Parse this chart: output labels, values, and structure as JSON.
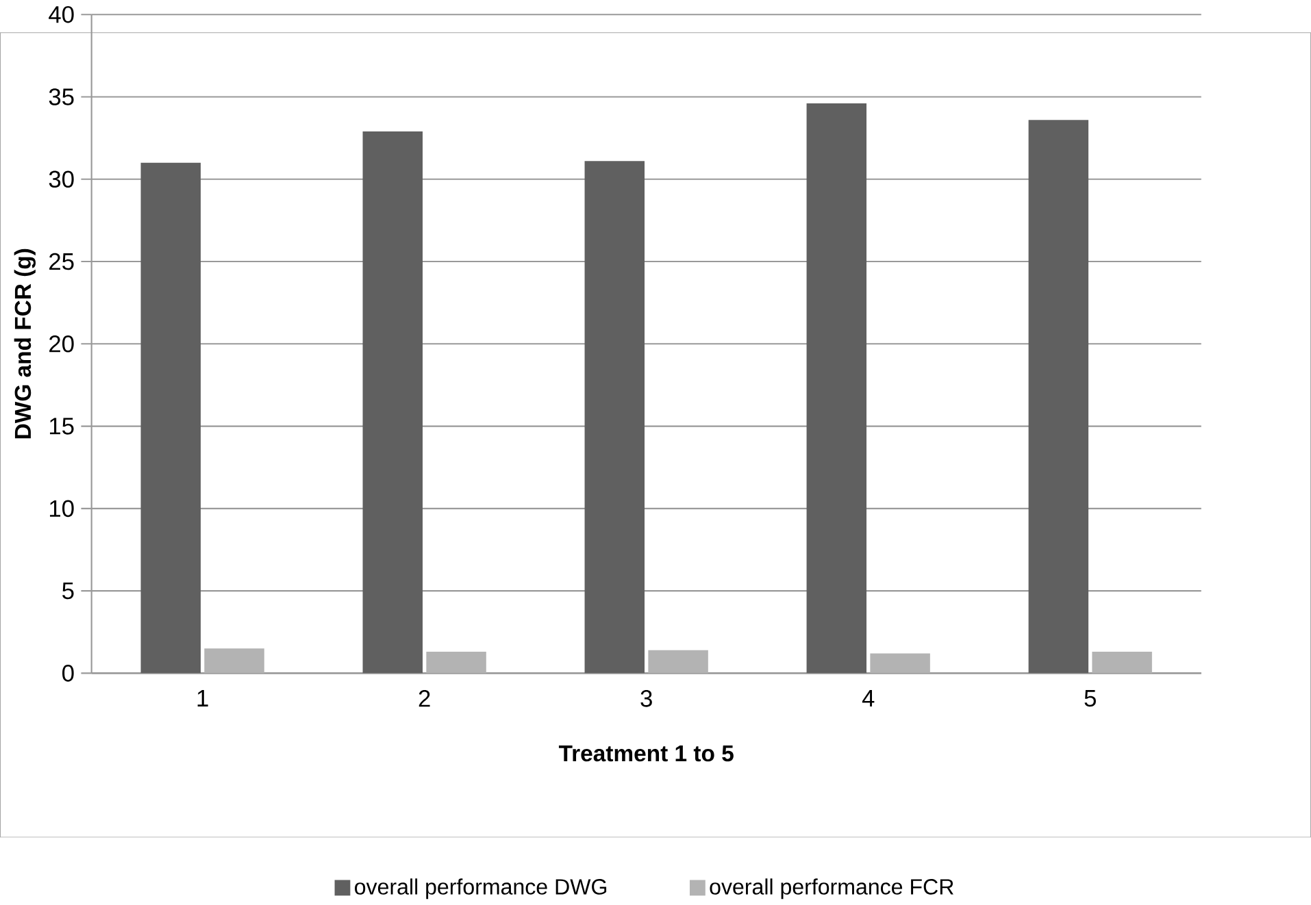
{
  "chart_data": {
    "type": "bar",
    "xlabel": "Treatment 1 to 5",
    "ylabel": "DWG and FCR (g)",
    "categories": [
      "1",
      "2",
      "3",
      "4",
      "5"
    ],
    "series": [
      {
        "name": "overall performance DWG",
        "color": "#606060",
        "values": [
          31.0,
          32.9,
          31.1,
          34.6,
          33.6
        ]
      },
      {
        "name": "overall performance FCR",
        "color": "#b3b3b3",
        "values": [
          1.5,
          1.3,
          1.4,
          1.2,
          1.3
        ]
      }
    ],
    "ylim": [
      0,
      40
    ],
    "yticks": [
      0,
      5,
      10,
      15,
      20,
      25,
      30,
      35,
      40
    ],
    "grid": "y",
    "legend": "bottom"
  }
}
